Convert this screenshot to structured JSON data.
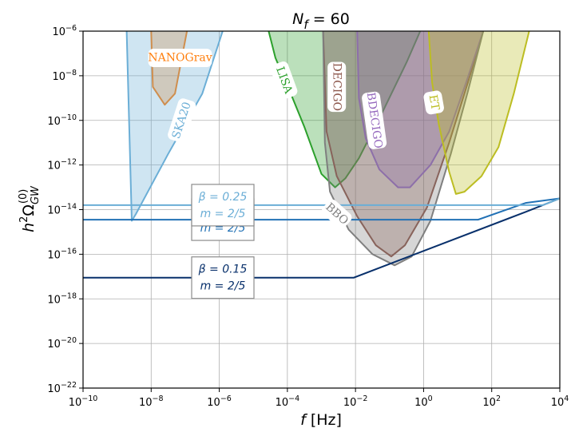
{
  "chart_data": {
    "type": "line",
    "title": "N_f = 60",
    "xlabel": "f [Hz]",
    "ylabel": "h^2 Ω_GW^(0)",
    "x_scale": "log",
    "y_scale": "log",
    "xlim": [
      1e-10,
      10000
    ],
    "ylim": [
      1e-22,
      1e-06
    ],
    "grid": true,
    "x_ticks": [
      {
        "value": 1e-10,
        "base": "10",
        "exp": "−10"
      },
      {
        "value": 1e-08,
        "base": "10",
        "exp": "−8"
      },
      {
        "value": 1e-06,
        "base": "10",
        "exp": "−6"
      },
      {
        "value": 0.0001,
        "base": "10",
        "exp": "−4"
      },
      {
        "value": 0.01,
        "base": "10",
        "exp": "−2"
      },
      {
        "value": 1,
        "base": "10",
        "exp": "0"
      },
      {
        "value": 100,
        "base": "10",
        "exp": "2"
      },
      {
        "value": 10000,
        "base": "10",
        "exp": "4"
      }
    ],
    "y_ticks": [
      {
        "value": 1e-06,
        "base": "10",
        "exp": "−6"
      },
      {
        "value": 1e-08,
        "base": "10",
        "exp": "−8"
      },
      {
        "value": 1e-10,
        "base": "10",
        "exp": "−10"
      },
      {
        "value": 1e-12,
        "base": "10",
        "exp": "−12"
      },
      {
        "value": 1e-14,
        "base": "10",
        "exp": "−14"
      },
      {
        "value": 1e-16,
        "base": "10",
        "exp": "−16"
      },
      {
        "value": 1e-18,
        "base": "10",
        "exp": "−18"
      },
      {
        "value": 1e-20,
        "base": "10",
        "exp": "−20"
      },
      {
        "value": 1e-22,
        "base": "10",
        "exp": "−22"
      }
    ],
    "sensitivity_curves": [
      {
        "name": "NANOGrav",
        "color": "#ff7f0e",
        "points": [
          [
            -8.0,
            -6
          ],
          [
            -7.95,
            -8.5
          ],
          [
            -7.6,
            -9.3
          ],
          [
            -7.3,
            -8.8
          ],
          [
            -6.95,
            -6
          ]
        ]
      },
      {
        "name": "SKA20",
        "color": "#6baed6",
        "points": [
          [
            -8.72,
            -6
          ],
          [
            -8.57,
            -14.5
          ],
          [
            -8.45,
            -14.2
          ],
          [
            -7.5,
            -11.5
          ],
          [
            -6.5,
            -8.8
          ],
          [
            -5.9,
            -6
          ]
        ]
      },
      {
        "name": "LISA",
        "color": "#2ca02c",
        "points": [
          [
            -4.55,
            -6
          ],
          [
            -4.35,
            -7.2
          ],
          [
            -3.9,
            -8.8
          ],
          [
            -3.5,
            -10.3
          ],
          [
            -3.0,
            -12.4
          ],
          [
            -2.6,
            -13.0
          ],
          [
            -2.3,
            -12.6
          ],
          [
            -1.9,
            -11.7
          ],
          [
            -1.2,
            -9.6
          ],
          [
            -0.5,
            -7.4
          ],
          [
            -0.1,
            -6
          ]
        ]
      },
      {
        "name": "DECIGO",
        "color": "#8c564b",
        "points": [
          [
            -2.95,
            -6
          ],
          [
            -2.85,
            -10.5
          ],
          [
            -2.55,
            -12.5
          ],
          [
            -1.95,
            -14.3
          ],
          [
            -1.4,
            -15.6
          ],
          [
            -0.95,
            -16.1
          ],
          [
            -0.55,
            -15.6
          ],
          [
            0.1,
            -13.9
          ],
          [
            0.75,
            -11.0
          ],
          [
            1.3,
            -8.3
          ],
          [
            1.75,
            -6
          ]
        ]
      },
      {
        "name": "BDECIGO",
        "color": "#9467bd",
        "points": [
          [
            -1.95,
            -6
          ],
          [
            -1.9,
            -9.0
          ],
          [
            -1.7,
            -10.8
          ],
          [
            -1.3,
            -12.2
          ],
          [
            -0.75,
            -13.0
          ],
          [
            -0.4,
            -13.0
          ],
          [
            0.2,
            -12.0
          ],
          [
            0.75,
            -10.5
          ],
          [
            1.25,
            -8.3
          ],
          [
            1.75,
            -6
          ]
        ]
      },
      {
        "name": "BBO",
        "color": "#7f7f7f",
        "points": [
          [
            -2.95,
            -6
          ],
          [
            -2.9,
            -11.0
          ],
          [
            -2.75,
            -13.2
          ],
          [
            -2.2,
            -14.9
          ],
          [
            -1.5,
            -16.0
          ],
          [
            -0.85,
            -16.5
          ],
          [
            -0.35,
            -16.1
          ],
          [
            0.2,
            -14.5
          ],
          [
            0.8,
            -11.5
          ],
          [
            1.3,
            -8.7
          ],
          [
            1.75,
            -6
          ]
        ]
      },
      {
        "name": "ET",
        "color": "#bcbd22",
        "points": [
          [
            0.15,
            -6
          ],
          [
            0.25,
            -8.3
          ],
          [
            0.45,
            -10.2
          ],
          [
            0.75,
            -12.3
          ],
          [
            0.95,
            -13.3
          ],
          [
            1.2,
            -13.2
          ],
          [
            1.7,
            -12.5
          ],
          [
            2.2,
            -11.2
          ],
          [
            2.65,
            -8.8
          ],
          [
            3.1,
            -6
          ]
        ]
      }
    ],
    "series": [
      {
        "color": "#08306b",
        "legend_lines": [
          "β = 0.15",
          "m = 2/5"
        ],
        "points": [
          [
            -10,
            -17.05
          ],
          [
            -2.05,
            -17.05
          ],
          [
            3.0,
            -14.1
          ],
          [
            4,
            -13.5
          ]
        ]
      },
      {
        "color": "#2171b5",
        "legend_lines": [
          "β = 0.2",
          "m = 2/5"
        ],
        "points": [
          [
            -10,
            -14.45
          ],
          [
            1.6,
            -14.45
          ],
          [
            3.0,
            -13.7
          ],
          [
            4,
            -13.5
          ]
        ]
      },
      {
        "color": "#6baed6",
        "legend_lines": [
          "β = 0.25",
          "m = 2/5"
        ],
        "points": [
          [
            -10,
            -13.8
          ],
          [
            3.5,
            -13.8
          ],
          [
            4,
            -13.5
          ]
        ]
      }
    ],
    "region_labels": [
      {
        "text": "NANOGrav",
        "at": [
          -7.15,
          -7.2
        ],
        "rotate": 0
      },
      {
        "text": "SKA20",
        "at": [
          -7.1,
          -10.0
        ],
        "rotate": -72
      },
      {
        "text": "LISA",
        "at": [
          -4.1,
          -8.2
        ],
        "rotate": 70
      },
      {
        "text": "DECIGO",
        "at": [
          -2.55,
          -8.5
        ],
        "rotate": 90
      },
      {
        "text": "BDECIGO",
        "at": [
          -1.45,
          -10.0
        ],
        "rotate": 82
      },
      {
        "text": "ET",
        "at": [
          0.3,
          -9.2
        ],
        "rotate": 80
      },
      {
        "text": "BBO",
        "at": [
          -2.55,
          -14.2
        ],
        "rotate": 42
      }
    ]
  }
}
